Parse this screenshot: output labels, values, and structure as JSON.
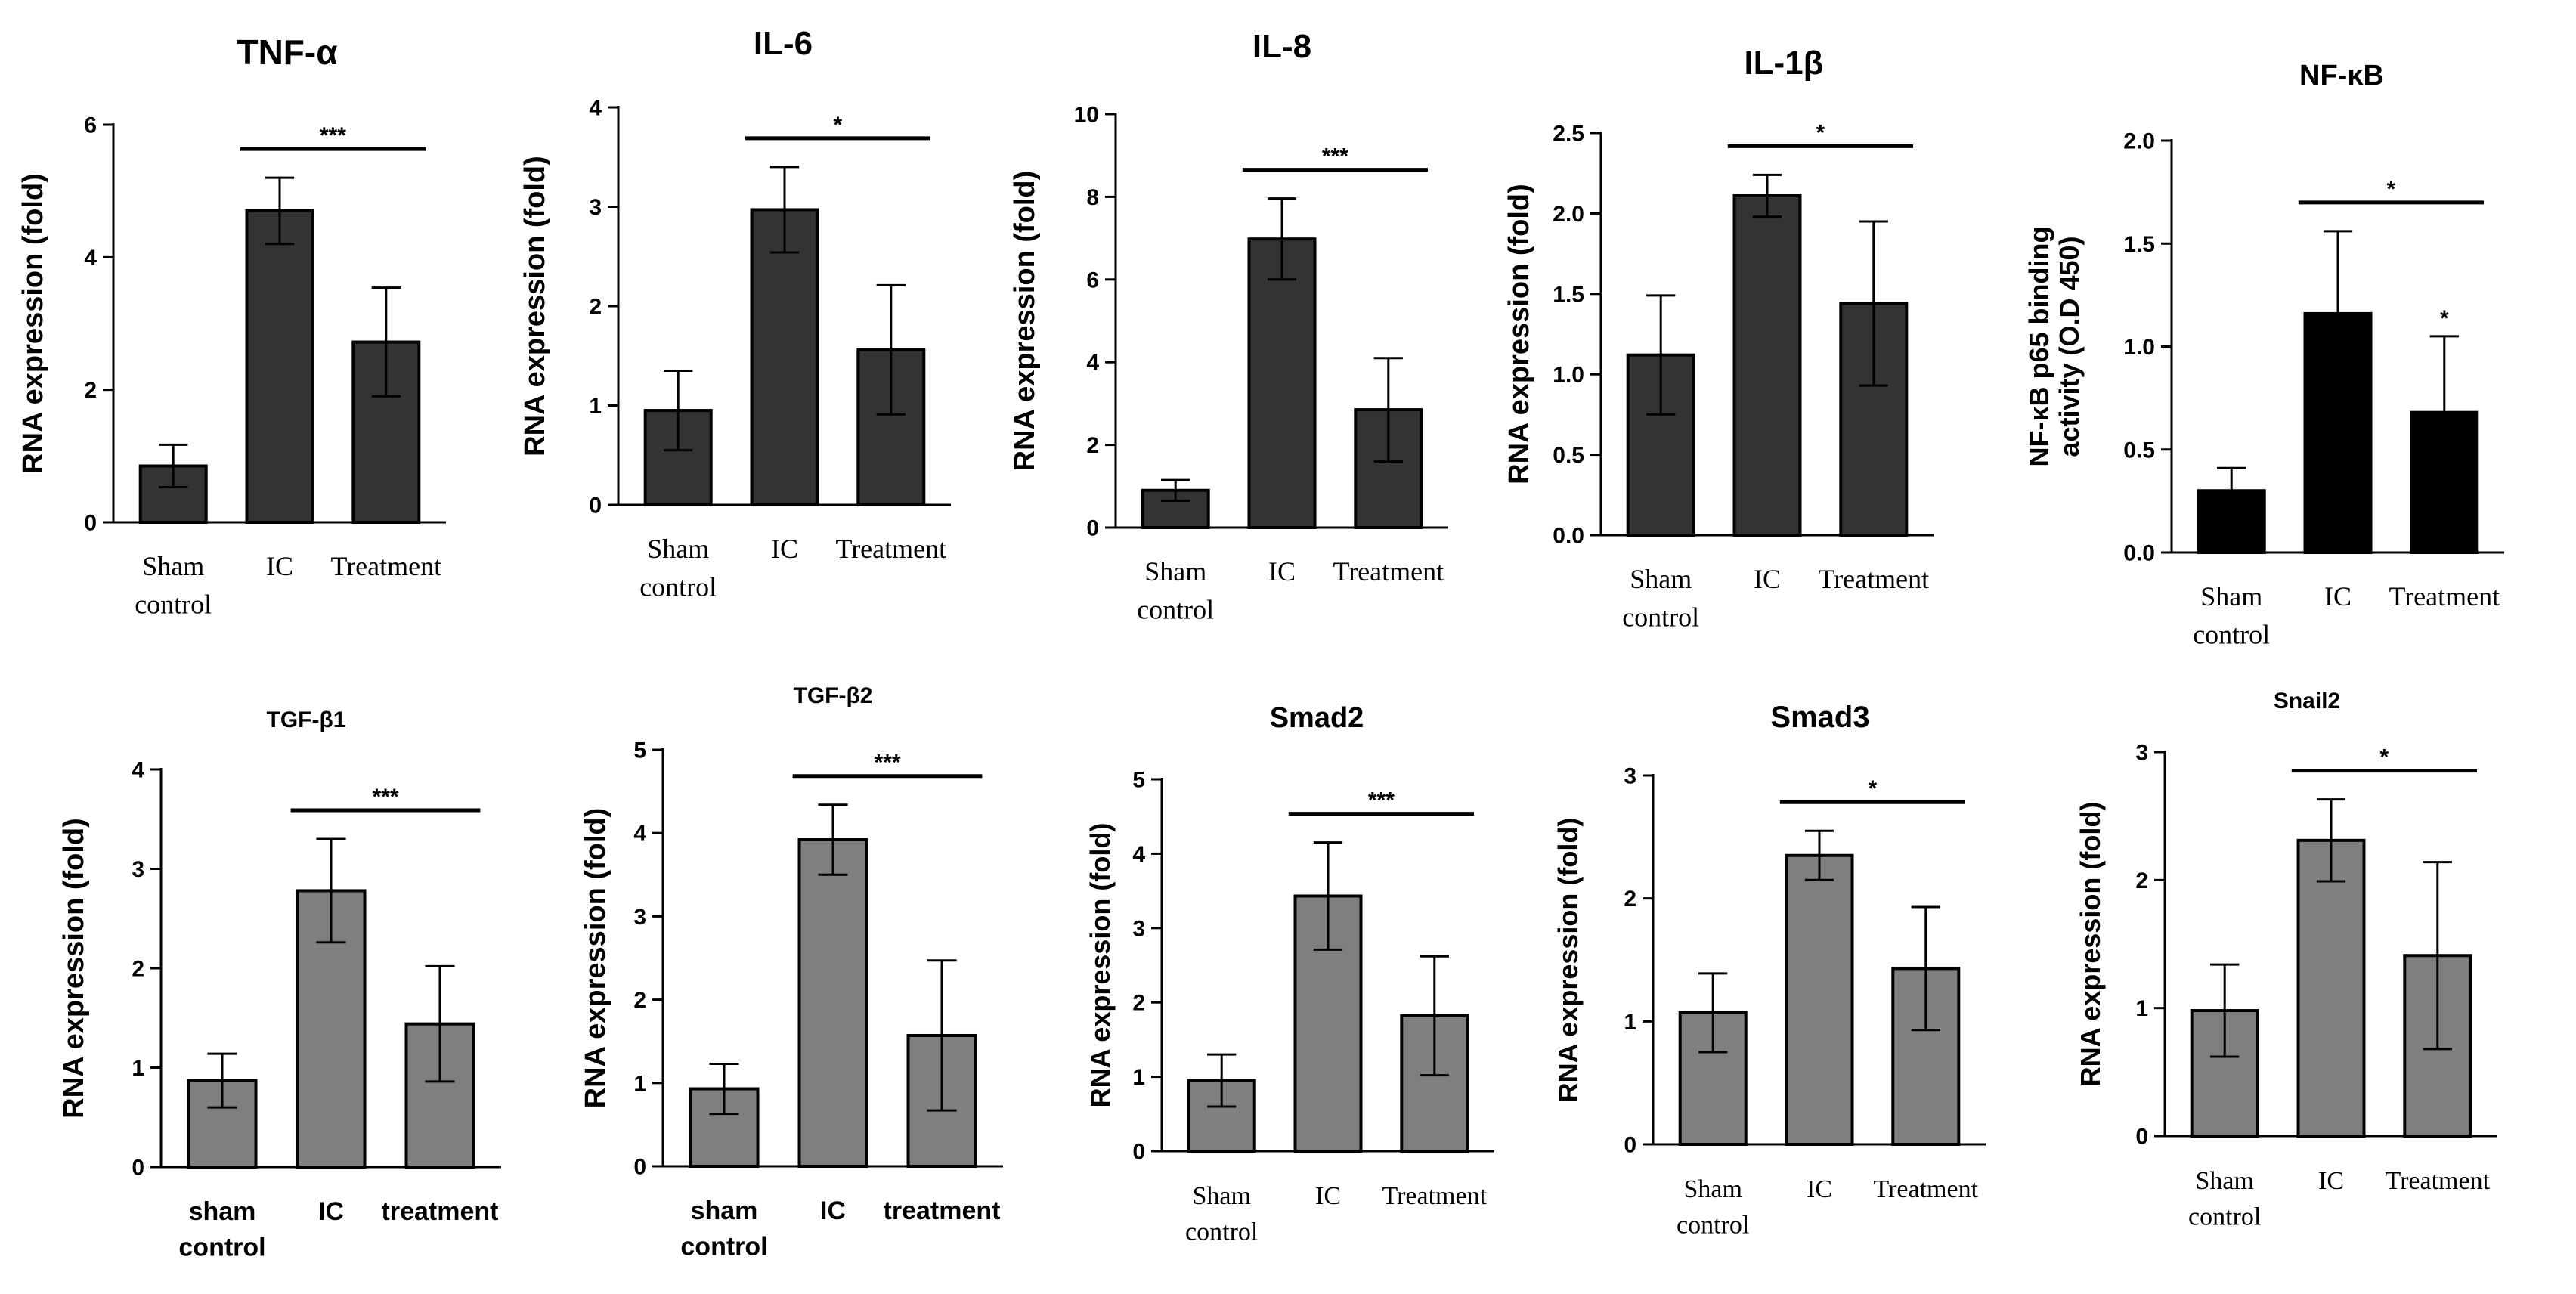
{
  "chart_data": [
    {
      "id": "tnf",
      "type": "bar",
      "title": "TNF-α",
      "ylabel": "RNA expression (fold)",
      "ylim": [
        0,
        6
      ],
      "yticks": [
        "0",
        "2",
        "4",
        "6"
      ],
      "categories": [
        [
          "Sham",
          "control"
        ],
        [
          "IC"
        ],
        [
          "Treatment"
        ]
      ],
      "values": [
        0.85,
        4.7,
        2.72
      ],
      "errors": [
        0.32,
        0.5,
        0.82
      ],
      "color": "#333333",
      "significance": "***",
      "point_stars": [
        "",
        "",
        ""
      ]
    },
    {
      "id": "il6",
      "type": "bar",
      "title": "IL-6",
      "ylabel": "RNA expression (fold)",
      "ylim": [
        0,
        4
      ],
      "yticks": [
        "0",
        "1",
        "2",
        "3",
        "4"
      ],
      "categories": [
        [
          "Sham",
          "control"
        ],
        [
          "IC"
        ],
        [
          "Treatment"
        ]
      ],
      "values": [
        0.95,
        2.97,
        1.56
      ],
      "errors": [
        0.4,
        0.43,
        0.65
      ],
      "color": "#333333",
      "significance": "*",
      "point_stars": [
        "",
        "",
        ""
      ]
    },
    {
      "id": "il8",
      "type": "bar",
      "title": "IL-8",
      "ylabel": "RNA expression (fold)",
      "ylim": [
        0,
        10
      ],
      "yticks": [
        "0",
        "2",
        "4",
        "6",
        "8",
        "10"
      ],
      "categories": [
        [
          "Sham",
          "control"
        ],
        [
          "IC"
        ],
        [
          "Treatment"
        ]
      ],
      "values": [
        0.9,
        6.98,
        2.85
      ],
      "errors": [
        0.25,
        0.98,
        1.25
      ],
      "color": "#333333",
      "significance": "***",
      "point_stars": [
        "",
        "",
        ""
      ]
    },
    {
      "id": "il1b",
      "type": "bar",
      "title": "IL-1β",
      "ylabel": "RNA expression (fold)",
      "ylim": [
        0,
        2.5
      ],
      "yticks": [
        "0.0",
        "0.5",
        "1.0",
        "1.5",
        "2.0",
        "2.5"
      ],
      "categories": [
        [
          "Sham",
          "control"
        ],
        [
          "IC"
        ],
        [
          "Treatment"
        ]
      ],
      "values": [
        1.12,
        2.11,
        1.44
      ],
      "errors": [
        0.37,
        0.13,
        0.51
      ],
      "color": "#333333",
      "significance": "*",
      "point_stars": [
        "",
        "",
        ""
      ]
    },
    {
      "id": "nfkb",
      "type": "bar",
      "title": "NF-κB",
      "ylabel": [
        "NF-κB p65 binding",
        "activity (O.D 450)"
      ],
      "ylim": [
        0,
        2.0
      ],
      "yticks": [
        "0.0",
        "0.5",
        "1.0",
        "1.5",
        "2.0"
      ],
      "categories": [
        [
          "Sham",
          "control"
        ],
        [
          "IC"
        ],
        [
          "Treatment"
        ]
      ],
      "values": [
        0.3,
        1.16,
        0.68
      ],
      "errors": [
        0.11,
        0.4,
        0.37
      ],
      "color": "#000000",
      "significance": "*",
      "point_stars": [
        "",
        "",
        "*"
      ]
    },
    {
      "id": "tgfb1",
      "type": "bar",
      "title": "TGF-β1",
      "ylabel": "RNA expression (fold)",
      "ylim": [
        0,
        4
      ],
      "yticks": [
        "0",
        "1",
        "2",
        "3",
        "4"
      ],
      "categories": [
        [
          "sham",
          "control"
        ],
        [
          "IC"
        ],
        [
          "treatment"
        ]
      ],
      "values": [
        0.87,
        2.78,
        1.44
      ],
      "errors": [
        0.27,
        0.52,
        0.58
      ],
      "color": "#7f7f7f",
      "significance": "***",
      "point_stars": [
        "",
        "",
        ""
      ]
    },
    {
      "id": "tgfb2",
      "type": "bar",
      "title": "TGF-β2",
      "ylabel": "RNA expression (fold)",
      "ylim": [
        0,
        5
      ],
      "yticks": [
        "0",
        "1",
        "2",
        "3",
        "4",
        "5"
      ],
      "categories": [
        [
          "sham",
          "control"
        ],
        [
          "IC"
        ],
        [
          "treatment"
        ]
      ],
      "values": [
        0.93,
        3.92,
        1.57
      ],
      "errors": [
        0.3,
        0.42,
        0.9
      ],
      "color": "#7f7f7f",
      "significance": "***",
      "point_stars": [
        "",
        "",
        ""
      ]
    },
    {
      "id": "smad2",
      "type": "bar",
      "title": "Smad2",
      "ylabel": "RNA expression (fold)",
      "ylim": [
        0,
        5
      ],
      "yticks": [
        "0",
        "1",
        "2",
        "3",
        "4",
        "5"
      ],
      "categories": [
        [
          "Sham",
          "control"
        ],
        [
          "IC"
        ],
        [
          "Treatment"
        ]
      ],
      "values": [
        0.95,
        3.43,
        1.82
      ],
      "errors": [
        0.35,
        0.72,
        0.8
      ],
      "color": "#7f7f7f",
      "significance": "***",
      "point_stars": [
        "",
        "",
        ""
      ]
    },
    {
      "id": "smad3",
      "type": "bar",
      "title": "Smad3",
      "ylabel": "RNA expression (fold)",
      "ylim": [
        0,
        3
      ],
      "yticks": [
        "0",
        "1",
        "2",
        "3"
      ],
      "categories": [
        [
          "Sham",
          "control"
        ],
        [
          "IC"
        ],
        [
          "Treatment"
        ]
      ],
      "values": [
        1.07,
        2.35,
        1.43
      ],
      "errors": [
        0.32,
        0.2,
        0.5
      ],
      "color": "#7f7f7f",
      "significance": "*",
      "point_stars": [
        "",
        "",
        ""
      ]
    },
    {
      "id": "snail2",
      "type": "bar",
      "title": "Snail2",
      "ylabel": "RNA expression (fold)",
      "ylim": [
        0,
        3
      ],
      "yticks": [
        "0",
        "1",
        "2",
        "3"
      ],
      "categories": [
        [
          "Sham",
          "control"
        ],
        [
          "IC"
        ],
        [
          "Treatment"
        ]
      ],
      "values": [
        0.98,
        2.31,
        1.41
      ],
      "errors": [
        0.36,
        0.32,
        0.73
      ],
      "color": "#7f7f7f",
      "significance": "*",
      "point_stars": [
        "",
        "",
        ""
      ]
    }
  ]
}
